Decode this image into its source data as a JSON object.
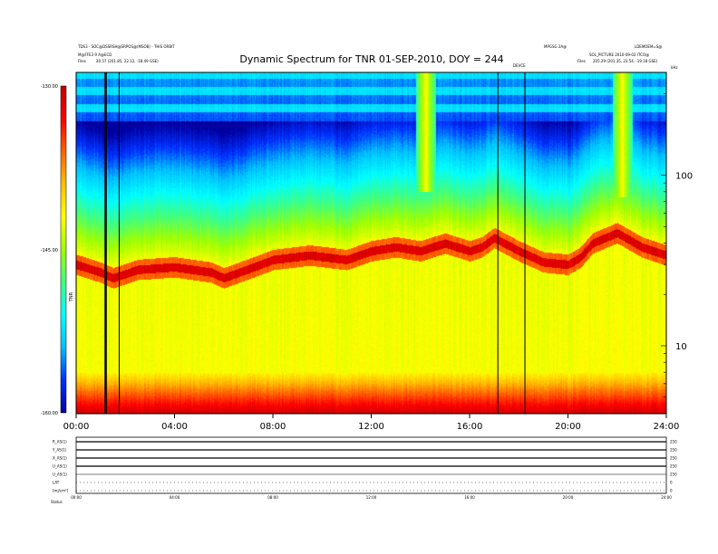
{
  "header": {
    "line1_left": "TDS3 - SOC@DSSRSH@SRPOS@(MSOB) - THIS ORBIT",
    "line2_left": "M@FFE3 9 A@ECD",
    "line3_left_label": "Files",
    "line3_left_value": "20.57 (201.85, 22.12, -18.49 GSE)",
    "line1_right_a": "MPGSG 2A@",
    "line1_right_b": "LDEMOEM=S@",
    "line2_right": "SOL_PICTURE 2010-09-02 ITCO@",
    "line3_right_label": "Files",
    "line3_right_value": "205.29 (201.35, 23.54, -19.18 GSE)",
    "mid_label": "DEVCE",
    "khz_label": "kHz"
  },
  "colors": {
    "frame": "#000000",
    "event_line": "#000000"
  },
  "chart_data": {
    "type": "heatmap",
    "title": "Dynamic Spectrum for TNR 01-SEP-2010, DOY = 244",
    "x_unit": "UT hours",
    "x_ticks": [
      "00:00",
      "04:00",
      "08:00",
      "12:00",
      "16:00",
      "20:00",
      "24:00"
    ],
    "xlim": [
      0,
      24
    ],
    "y_scale": "log",
    "y_ticks": [
      "100",
      "10"
    ],
    "y_tick_values": [
      100,
      10
    ],
    "ylim": [
      4,
      400
    ],
    "colorbar": {
      "ticks": [
        "-130.00",
        "-145.00",
        "-160.00"
      ],
      "label": "TNR",
      "range": [
        -160,
        -130
      ],
      "colors": [
        "#0000a0",
        "#0030ff",
        "#00c0ff",
        "#00ffff",
        "#40ff80",
        "#a0ff00",
        "#ffff00",
        "#ffc000",
        "#ff6000",
        "#ff0000",
        "#c00000"
      ]
    },
    "event_lines_hours": [
      1.2,
      1.75,
      17.15,
      18.25
    ],
    "ridge_profile": [
      {
        "t": 0.0,
        "f": 30
      },
      {
        "t": 1.0,
        "f": 27
      },
      {
        "t": 1.5,
        "f": 25
      },
      {
        "t": 2.5,
        "f": 28
      },
      {
        "t": 4.0,
        "f": 29
      },
      {
        "t": 5.5,
        "f": 27
      },
      {
        "t": 6.0,
        "f": 25
      },
      {
        "t": 7.5,
        "f": 30
      },
      {
        "t": 8.0,
        "f": 32
      },
      {
        "t": 9.5,
        "f": 34
      },
      {
        "t": 11.0,
        "f": 32
      },
      {
        "t": 12.0,
        "f": 36
      },
      {
        "t": 13.0,
        "f": 38
      },
      {
        "t": 14.0,
        "f": 36
      },
      {
        "t": 15.0,
        "f": 40
      },
      {
        "t": 16.0,
        "f": 36
      },
      {
        "t": 16.5,
        "f": 38
      },
      {
        "t": 17.0,
        "f": 43
      },
      {
        "t": 18.0,
        "f": 36
      },
      {
        "t": 19.0,
        "f": 31
      },
      {
        "t": 20.0,
        "f": 30
      },
      {
        "t": 20.5,
        "f": 33
      },
      {
        "t": 21.0,
        "f": 40
      },
      {
        "t": 22.0,
        "f": 46
      },
      {
        "t": 23.0,
        "f": 38
      },
      {
        "t": 24.0,
        "f": 34
      }
    ],
    "bursts": [
      {
        "t_start": 13.8,
        "t_end": 14.6,
        "f_low": 80,
        "f_high": 400
      },
      {
        "t_start": 21.8,
        "t_end": 22.6,
        "f_low": 75,
        "f_high": 400
      }
    ]
  },
  "orbit_panel": {
    "rows": [
      {
        "label": "R_AS(1)",
        "right": "250"
      },
      {
        "label": "Y_AS(1)",
        "right": "250"
      },
      {
        "label": "X_AS(1)",
        "right": "250"
      },
      {
        "label": "U_AS(1)",
        "right": "250"
      },
      {
        "label": "U_AS(1)",
        "right": "250"
      },
      {
        "label": "LAT",
        "right": "0"
      },
      {
        "label": "[mj/cm²]",
        "right": "0"
      }
    ],
    "x_ticks": [
      "00:00",
      "04:00",
      "08:00",
      "12:00",
      "16:00",
      "20:00",
      "24:00"
    ],
    "footer_label": "Status"
  }
}
